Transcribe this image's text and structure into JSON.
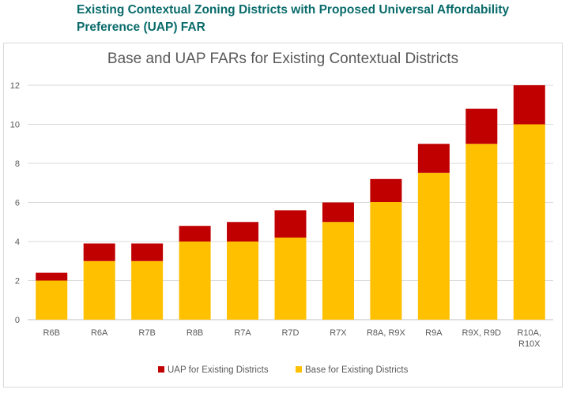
{
  "page": {
    "heading": "Existing Contextual Zoning Districts with Proposed Universal Affordability Preference (UAP) FAR"
  },
  "chart_data": {
    "type": "bar",
    "stacked": true,
    "title": "Base and UAP FARs for Existing Contextual Districts",
    "xlabel": "",
    "ylabel": "",
    "ylim": [
      0,
      12
    ],
    "yticks": [
      0,
      2,
      4,
      6,
      8,
      10,
      12
    ],
    "grid": true,
    "legend_position": "bottom",
    "categories": [
      [
        "R6B"
      ],
      [
        "R6A"
      ],
      [
        "R7B"
      ],
      [
        "R8B"
      ],
      [
        "R7A"
      ],
      [
        "R7D"
      ],
      [
        "R7X"
      ],
      [
        "R8A, R9X"
      ],
      [
        "R9A"
      ],
      [
        "R9X, R9D"
      ],
      [
        "R10A,",
        "R10X"
      ]
    ],
    "series": [
      {
        "name": "Base for Existing Districts",
        "color": "#ffc000",
        "values": [
          2,
          3,
          3,
          4,
          4,
          4.2,
          5,
          6.02,
          7.52,
          9,
          10
        ]
      },
      {
        "name": "UAP for Existing Districts",
        "color": "#c00000",
        "values": [
          0.4,
          0.9,
          0.9,
          0.8,
          1.0,
          1.4,
          1.0,
          1.18,
          1.48,
          1.8,
          2.0
        ]
      }
    ],
    "legend_order": [
      "UAP for Existing Districts",
      "Base for Existing Districts"
    ]
  }
}
